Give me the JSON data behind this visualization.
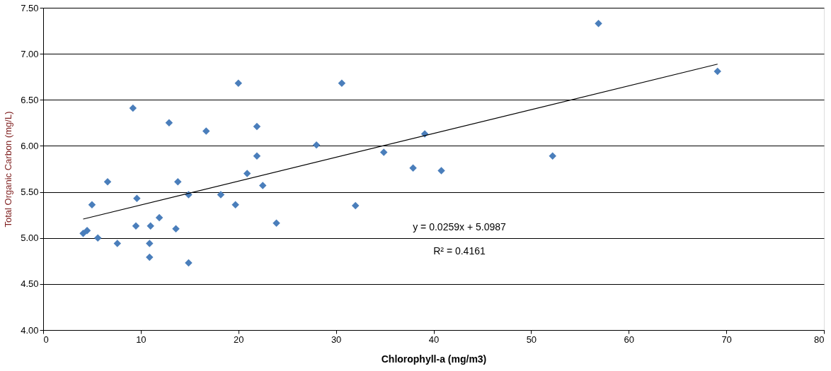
{
  "chart_data": {
    "type": "scatter",
    "xlabel": "Chlorophyll-a (mg/m3)",
    "ylabel": "Total Organic Carbon (mg/L)",
    "xlim": [
      0,
      80
    ],
    "xticks": [
      0,
      10,
      20,
      30,
      40,
      50,
      60,
      70,
      80
    ],
    "ylim": [
      4.0,
      7.5
    ],
    "yticks": [
      {
        "value": 4.0,
        "label": "4.00"
      },
      {
        "value": 4.5,
        "label": "4.50"
      },
      {
        "value": 5.0,
        "label": "5.00"
      },
      {
        "value": 5.5,
        "label": "5.50"
      },
      {
        "value": 6.0,
        "label": "6.00"
      },
      {
        "value": 6.5,
        "label": "6.50"
      },
      {
        "value": 7.0,
        "label": "7.00"
      },
      {
        "value": 7.5,
        "label": "7.50"
      }
    ],
    "grid": "y",
    "marker": "diamond",
    "series": [
      {
        "color": "#4a7ebb",
        "x": [
          56.9,
          69.1,
          20.0,
          30.6,
          9.2,
          12.9,
          21.9,
          16.7,
          39.1,
          28.0,
          21.9,
          52.2,
          34.9,
          37.9,
          40.8,
          20.9,
          22.5,
          6.6,
          13.8,
          14.9,
          18.2,
          9.6,
          5.0,
          19.7,
          32.0,
          11.9,
          23.9,
          9.5,
          11.0,
          13.6,
          4.5,
          4.1,
          5.6,
          7.6,
          10.9,
          10.9,
          14.9
        ],
        "values": [
          7.33,
          6.81,
          6.68,
          6.68,
          6.41,
          6.25,
          6.21,
          6.16,
          6.13,
          6.01,
          5.89,
          5.89,
          5.93,
          5.76,
          5.73,
          5.7,
          5.57,
          5.61,
          5.61,
          5.47,
          5.47,
          5.43,
          5.36,
          5.36,
          5.35,
          5.22,
          5.16,
          5.13,
          5.13,
          5.1,
          5.08,
          5.05,
          5.0,
          4.94,
          4.94,
          4.79,
          4.73
        ]
      },
      {
        "type": "line",
        "marker": "none",
        "color": "#000000",
        "x": [
          4.1,
          69.1
        ],
        "values": [
          5.205,
          6.888
        ]
      }
    ],
    "annotations": [
      "y = 0.0259x + 5.0987",
      "R² = 0.4161"
    ]
  }
}
